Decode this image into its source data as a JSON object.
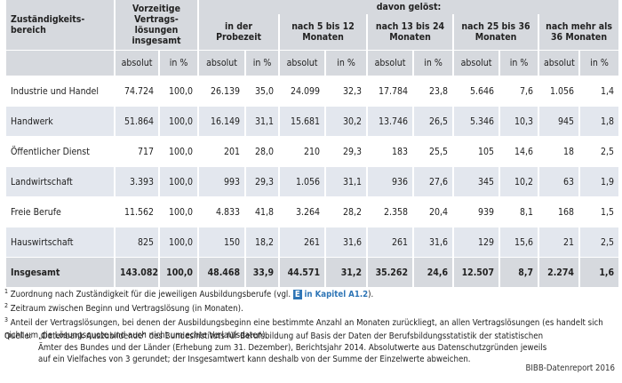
{
  "table": {
    "header": {
      "area": "Zuständigkeits-bereich",
      "total": "Vorzeitige Vertrags-lösungen insgesamt",
      "group": "davon gelöst:",
      "periods": [
        "in der Probezeit",
        "nach 5 bis 12 Monaten",
        "nach 13 bis 24 Monaten",
        "nach 25 bis 36 Monaten",
        "nach mehr als 36 Monaten"
      ],
      "abs": "absolut",
      "pct": "in %"
    },
    "rows": [
      [
        "Industrie und Handel",
        "74.724",
        "100,0",
        "26.139",
        "35,0",
        "24.099",
        "32,3",
        "17.784",
        "23,8",
        "5.646",
        "7,6",
        "1.056",
        "1,4"
      ],
      [
        "Handwerk",
        "51.864",
        "100,0",
        "16.149",
        "31,1",
        "15.681",
        "30,2",
        "13.746",
        "26,5",
        "5.346",
        "10,3",
        "945",
        "1,8"
      ],
      [
        "Öffentlicher Dienst",
        "717",
        "100,0",
        "201",
        "28,0",
        "210",
        "29,3",
        "183",
        "25,5",
        "105",
        "14,6",
        "18",
        "2,5"
      ],
      [
        "Landwirtschaft",
        "3.393",
        "100,0",
        "993",
        "29,3",
        "1.056",
        "31,1",
        "936",
        "27,6",
        "345",
        "10,2",
        "63",
        "1,9"
      ],
      [
        "Freie Berufe",
        "11.562",
        "100,0",
        "4.833",
        "41,8",
        "3.264",
        "28,2",
        "2.358",
        "20,4",
        "939",
        "8,1",
        "168",
        "1,5"
      ],
      [
        "Hauswirtschaft",
        "825",
        "100,0",
        "150",
        "18,2",
        "261",
        "31,6",
        "261",
        "31,6",
        "129",
        "15,6",
        "21",
        "2,5"
      ],
      [
        "Insgesamt",
        "143.082",
        "100,0",
        "48.468",
        "33,9",
        "44.571",
        "31,2",
        "35.262",
        "24,6",
        "12.507",
        "8,7",
        "2.274",
        "1,6"
      ]
    ]
  },
  "footnotes": [
    {
      "marker": "1",
      "text": "Zuordnung nach Zuständigkeit für die jeweiligen Ausbildungsberufe (vgl. ",
      "icon": "E",
      "link": "in Kapitel A1.2",
      "after": ")."
    },
    {
      "marker": "2",
      "text": "Zeitraum zwischen Beginn und Vertragslösung (in Monaten)."
    },
    {
      "marker": "3",
      "text": "Anteil der Vertragslösungen, bei denen der Ausbildungsbeginn eine bestimmte Anzahl an Monaten zurückliegt, an allen Vertragslösungen (es handelt sich nicht um die Lösungsquote und auch nicht um echte Verlaufsdaten)."
    }
  ],
  "source": {
    "label": "Quelle:",
    "text": "„Datenbank Auszubildende“ des Bundesinstituts für Berufsbildung auf Basis der Daten der Berufsbildungsstatistik der statistischen Ämter des Bundes und der Länder (Erhebung zum 31. Dezember), Berichtsjahr 2014. Absolutwerte aus Datenschutzgründen jeweils auf ein Vielfaches von 3 gerundet; der Insgesamtwert kann deshalb von der Summe der Einzelwerte abweichen."
  },
  "credit": "BIBB-Datenreport 2016"
}
